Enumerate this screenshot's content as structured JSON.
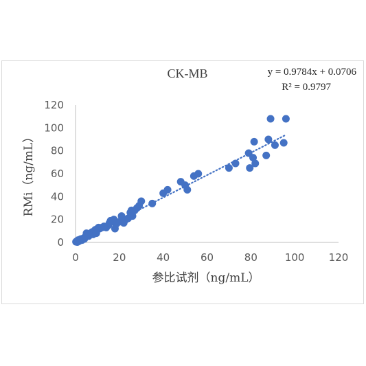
{
  "chart_data": {
    "type": "scatter",
    "title": "CK-MB",
    "xlabel": "参比试剂（ng/mL）",
    "ylabel": "RMi（ng/mL）",
    "xlim": [
      0,
      120
    ],
    "ylim": [
      0,
      120
    ],
    "xticks": [
      "0",
      "20",
      "40",
      "60",
      "80",
      "100",
      "120"
    ],
    "yticks": [
      "0",
      "20",
      "40",
      "60",
      "80",
      "100",
      "120"
    ],
    "grid": false,
    "legend": "none",
    "trendline": {
      "type": "linear",
      "slope": 0.9784,
      "intercept": 0.0706,
      "equation": "y = 0.9784x + 0.0706",
      "r_squared": "R² = 0.9797",
      "style": "dotted",
      "x_range": [
        0,
        96
      ]
    },
    "series": [
      {
        "color": "#4472c4",
        "points": [
          [
            0.2,
            0.5
          ],
          [
            0.5,
            1
          ],
          [
            0.8,
            0.3
          ],
          [
            1,
            1.5
          ],
          [
            1.2,
            2
          ],
          [
            1.5,
            1
          ],
          [
            2,
            2.5
          ],
          [
            2.2,
            1.8
          ],
          [
            2.5,
            3
          ],
          [
            3,
            2
          ],
          [
            3.5,
            3.5
          ],
          [
            4,
            3
          ],
          [
            4.5,
            5
          ],
          [
            5,
            8
          ],
          [
            5.5,
            6
          ],
          [
            6,
            5.5
          ],
          [
            6.5,
            7
          ],
          [
            7,
            8
          ],
          [
            7.5,
            9
          ],
          [
            8,
            7
          ],
          [
            8.5,
            10
          ],
          [
            9,
            11
          ],
          [
            9.5,
            8
          ],
          [
            10,
            12
          ],
          [
            10.5,
            13
          ],
          [
            11,
            12
          ],
          [
            12,
            13
          ],
          [
            13,
            14
          ],
          [
            14,
            13
          ],
          [
            15,
            15
          ],
          [
            15.5,
            17
          ],
          [
            16,
            19
          ],
          [
            17,
            18
          ],
          [
            17.5,
            20
          ],
          [
            18,
            12
          ],
          [
            18.5,
            16
          ],
          [
            19,
            17
          ],
          [
            20,
            18
          ],
          [
            21,
            23
          ],
          [
            21.5,
            20
          ],
          [
            22,
            17
          ],
          [
            23,
            20
          ],
          [
            24,
            21
          ],
          [
            25,
            26
          ],
          [
            25.5,
            28
          ],
          [
            26,
            23
          ],
          [
            27,
            28
          ],
          [
            28,
            30
          ],
          [
            29,
            32
          ],
          [
            30,
            36
          ],
          [
            35,
            34
          ],
          [
            40,
            43
          ],
          [
            42,
            46
          ],
          [
            48,
            53
          ],
          [
            50,
            50
          ],
          [
            51,
            46
          ],
          [
            54,
            58
          ],
          [
            56,
            60
          ],
          [
            70,
            65
          ],
          [
            73,
            69
          ],
          [
            79,
            78
          ],
          [
            79.5,
            65
          ],
          [
            81,
            74
          ],
          [
            81.5,
            88
          ],
          [
            82,
            69
          ],
          [
            87,
            76
          ],
          [
            88,
            90
          ],
          [
            89,
            108
          ],
          [
            91,
            85
          ],
          [
            95,
            87
          ],
          [
            96,
            108
          ]
        ]
      }
    ]
  }
}
